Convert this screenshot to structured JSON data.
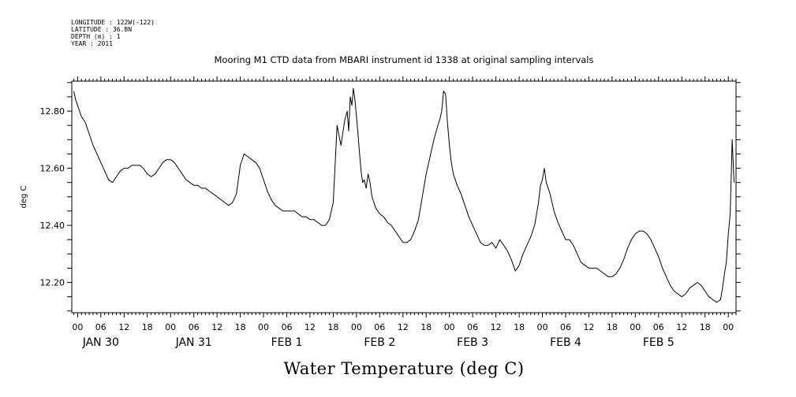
{
  "metadata": {
    "longitude": "LONGITUDE : 122W(-122)",
    "latitude": "LATITUDE : 36.8N",
    "depth": "DEPTH (m) : 1",
    "year": "YEAR : 2011"
  },
  "chart_data": {
    "type": "line",
    "title": "Mooring M1 CTD data from MBARI instrument id 1338 at original sampling intervals",
    "xlabel": "Water Temperature (deg C)",
    "ylabel": "deg C",
    "x_units": "hours since 2011-01-30 00:00",
    "xlim": [
      -1.5,
      170
    ],
    "ylim": [
      12.094,
      12.905
    ],
    "y_ticks": [
      12.2,
      12.4,
      12.6,
      12.8
    ],
    "y_tick_labels": [
      "12.20",
      "12.40",
      "12.60",
      "12.80"
    ],
    "hour_ticks": [
      0,
      6,
      12,
      18,
      24,
      30,
      36,
      42,
      48,
      54,
      60,
      66,
      72,
      78,
      84,
      90,
      96,
      102,
      108,
      114,
      120,
      126,
      132,
      138,
      144,
      150,
      156,
      162,
      168
    ],
    "hour_tick_labels": [
      "00",
      "06",
      "12",
      "18",
      "00",
      "06",
      "12",
      "18",
      "00",
      "06",
      "12",
      "18",
      "00",
      "06",
      "12",
      "18",
      "00",
      "06",
      "12",
      "18",
      "00",
      "06",
      "12",
      "18",
      "00",
      "06",
      "12",
      "18",
      "00"
    ],
    "day_labels": [
      {
        "hour": 6,
        "text": "JAN 30"
      },
      {
        "hour": 30,
        "text": "JAN 31"
      },
      {
        "hour": 54,
        "text": "FEB  1"
      },
      {
        "hour": 78,
        "text": "FEB  2"
      },
      {
        "hour": 102,
        "text": "FEB  3"
      },
      {
        "hour": 126,
        "text": "FEB  4"
      },
      {
        "hour": 150,
        "text": "FEB  5"
      }
    ],
    "grid": false,
    "legend": "none",
    "line_color": "#000000",
    "series": [
      {
        "x": [
          -1.0,
          -0.5,
          0.0,
          0.5,
          1.0,
          1.5,
          2.0,
          2.5,
          3.0,
          4.0,
          5.0,
          6.0,
          7.0,
          8.0,
          9.0,
          10.0,
          11.0,
          12.0,
          13.0,
          14.0,
          15.0,
          16.0,
          17.0,
          18.0,
          19.0,
          20.0,
          21.0,
          22.0,
          23.0,
          24.0,
          25.0,
          26.0,
          27.0,
          28.0,
          29.0,
          30.0,
          31.0,
          32.0,
          33.0,
          34.0,
          35.0,
          36.0,
          37.0,
          38.0,
          39.0,
          40.0,
          41.0,
          42.0,
          43.0,
          44.0,
          45.0,
          46.0,
          47.0,
          48.0,
          49.0,
          50.0,
          51.0,
          52.0,
          53.0,
          54.0,
          55.0,
          56.0,
          57.0,
          58.0,
          59.0,
          60.0,
          61.0,
          62.0,
          63.0,
          64.0,
          65.0,
          66.0,
          67.0,
          68.0,
          69.0,
          69.6,
          70.0,
          70.4,
          70.8,
          71.2,
          71.6,
          72.0,
          72.4,
          72.8,
          73.2,
          73.6,
          74.0,
          74.5,
          75.0,
          75.5,
          76.0,
          76.5,
          77.0,
          78.0,
          79.0,
          80.0,
          81.0,
          82.0,
          83.0,
          84.0,
          85.0,
          86.0,
          87.0,
          88.0,
          89.0,
          90.0,
          91.0,
          92.0,
          93.0,
          93.5,
          94.0,
          94.5,
          95.0,
          95.5,
          96.0,
          96.5,
          97.0,
          98.0,
          99.0,
          100.0,
          101.0,
          102.0,
          103.0,
          104.0,
          105.0,
          106.0,
          107.0,
          108.0,
          109.0,
          110.0,
          111.0,
          112.0,
          113.0,
          114.0,
          115.0,
          116.0,
          117.0,
          118.0,
          119.0,
          119.5,
          120.0,
          120.5,
          121.0,
          122.0,
          123.0,
          124.0,
          125.0,
          126.0,
          127.0,
          128.0,
          129.0,
          130.0,
          131.0,
          132.0,
          133.0,
          134.0,
          135.0,
          136.0,
          137.0,
          138.0,
          139.0,
          140.0,
          141.0,
          142.0,
          143.0,
          144.0,
          145.0,
          146.0,
          147.0,
          148.0,
          149.0,
          150.0,
          151.0,
          152.0,
          153.0,
          154.0,
          155.0,
          156.0,
          157.0,
          158.0,
          159.0,
          160.0,
          161.0,
          162.0,
          163.0,
          164.0,
          165.0,
          166.0,
          166.5,
          167.0,
          167.5,
          168.0,
          168.5,
          169.0,
          169.5
        ],
        "y": [
          12.87,
          12.84,
          12.82,
          12.8,
          12.78,
          12.77,
          12.76,
          12.74,
          12.72,
          12.68,
          12.65,
          12.62,
          12.59,
          12.56,
          12.55,
          12.57,
          12.59,
          12.6,
          12.6,
          12.61,
          12.61,
          12.61,
          12.6,
          12.58,
          12.57,
          12.58,
          12.6,
          12.62,
          12.63,
          12.63,
          12.62,
          12.6,
          12.58,
          12.56,
          12.55,
          12.54,
          12.54,
          12.53,
          12.53,
          12.52,
          12.51,
          12.5,
          12.49,
          12.48,
          12.47,
          12.48,
          12.51,
          12.61,
          12.65,
          12.64,
          12.63,
          12.62,
          12.6,
          12.56,
          12.52,
          12.49,
          12.47,
          12.46,
          12.45,
          12.45,
          12.45,
          12.45,
          12.44,
          12.43,
          12.43,
          12.42,
          12.42,
          12.41,
          12.4,
          12.4,
          12.42,
          12.48,
          12.75,
          12.68,
          12.77,
          12.8,
          12.73,
          12.85,
          12.82,
          12.88,
          12.84,
          12.78,
          12.72,
          12.65,
          12.59,
          12.55,
          12.56,
          12.53,
          12.58,
          12.55,
          12.5,
          12.48,
          12.46,
          12.44,
          12.43,
          12.41,
          12.4,
          12.38,
          12.36,
          12.34,
          12.34,
          12.35,
          12.38,
          12.42,
          12.5,
          12.58,
          12.64,
          12.7,
          12.75,
          12.77,
          12.8,
          12.87,
          12.86,
          12.76,
          12.68,
          12.62,
          12.58,
          12.54,
          12.51,
          12.47,
          12.43,
          12.4,
          12.37,
          12.34,
          12.33,
          12.33,
          12.34,
          12.32,
          12.35,
          12.33,
          12.31,
          12.28,
          12.24,
          12.26,
          12.3,
          12.33,
          12.36,
          12.4,
          12.48,
          12.54,
          12.56,
          12.6,
          12.55,
          12.51,
          12.45,
          12.41,
          12.38,
          12.35,
          12.35,
          12.33,
          12.3,
          12.27,
          12.26,
          12.25,
          12.25,
          12.25,
          12.24,
          12.23,
          12.22,
          12.22,
          12.23,
          12.25,
          12.28,
          12.32,
          12.35,
          12.37,
          12.38,
          12.38,
          12.37,
          12.35,
          12.32,
          12.29,
          12.25,
          12.22,
          12.19,
          12.17,
          12.16,
          12.15,
          12.16,
          12.18,
          12.19,
          12.2,
          12.19,
          12.17,
          12.15,
          12.14,
          12.13,
          12.14,
          12.18,
          12.23,
          12.27,
          12.37,
          12.44,
          12.7,
          12.55
        ]
      }
    ]
  }
}
